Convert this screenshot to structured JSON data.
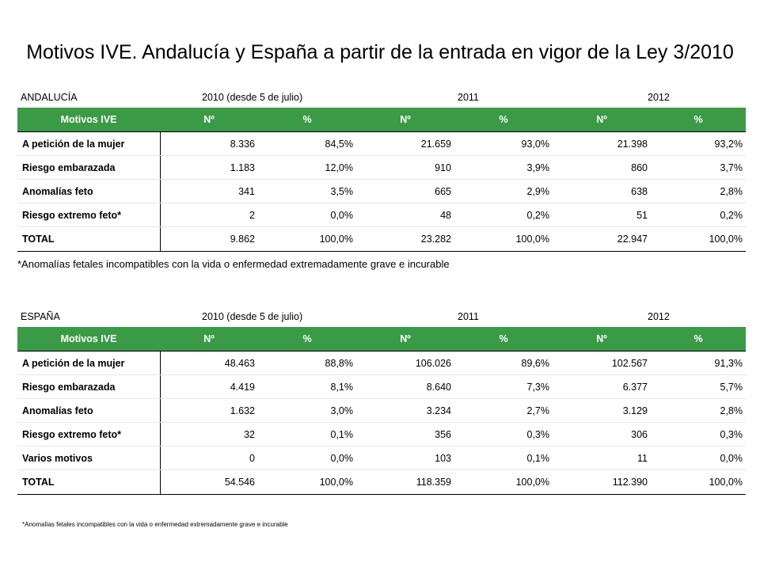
{
  "title": "Motivos IVE. Andalucía y España a partir de la entrada en vigor de la Ley 3/2010",
  "andalucia": {
    "region": "ANDALUCÍA",
    "years": [
      "2010 (desde 5 de julio)",
      "2011",
      "2012"
    ],
    "headers": [
      "Motivos IVE",
      "Nº",
      "%",
      "Nº",
      "%",
      "Nº",
      "%"
    ],
    "rows": [
      [
        "A petición de la mujer",
        "8.336",
        "84,5%",
        "21.659",
        "93,0%",
        "21.398",
        "93,2%"
      ],
      [
        "Riesgo embarazada",
        "1.183",
        "12,0%",
        "910",
        "3,9%",
        "860",
        "3,7%"
      ],
      [
        "Anomalías feto",
        "341",
        "3,5%",
        "665",
        "2,9%",
        "638",
        "2,8%"
      ],
      [
        "Riesgo extremo feto*",
        "2",
        "0,0%",
        "48",
        "0,2%",
        "51",
        "0,2%"
      ]
    ],
    "total": [
      "TOTAL",
      "9.862",
      "100,0%",
      "23.282",
      "100,0%",
      "22.947",
      "100,0%"
    ],
    "note": "*Anomalías fetales incompatibles con la vida o enfermedad extremadamente grave e incurable"
  },
  "espana": {
    "region": "ESPAÑA",
    "years": [
      "2010 (desde 5 de julio)",
      "2011",
      "2012"
    ],
    "headers": [
      "Motivos IVE",
      "Nº",
      "%",
      "Nº",
      "%",
      "Nº",
      "%"
    ],
    "rows": [
      [
        "A petición de la mujer",
        "48.463",
        "88,8%",
        "106.026",
        "89,6%",
        "102.567",
        "91,3%"
      ],
      [
        "Riesgo embarazada",
        "4.419",
        "8,1%",
        "8.640",
        "7,3%",
        "6.377",
        "5,7%"
      ],
      [
        "Anomalías feto",
        "1.632",
        "3,0%",
        "3.234",
        "2,7%",
        "3.129",
        "2,8%"
      ],
      [
        "Riesgo extremo feto*",
        "32",
        "0,1%",
        "356",
        "0,3%",
        "306",
        "0,3%"
      ],
      [
        "Varios motivos",
        "0",
        "0,0%",
        "103",
        "0,1%",
        "11",
        "0,0%"
      ]
    ],
    "total": [
      "TOTAL",
      "54.546",
      "100,0%",
      "118.359",
      "100,0%",
      "112.390",
      "100,0%"
    ],
    "note": "*Anomalías fetales incompatibles con la vida o enfermedad extremadamente grave e incurable"
  },
  "colors": {
    "header_bg": "#3a9a46",
    "header_text": "#ffffff"
  }
}
